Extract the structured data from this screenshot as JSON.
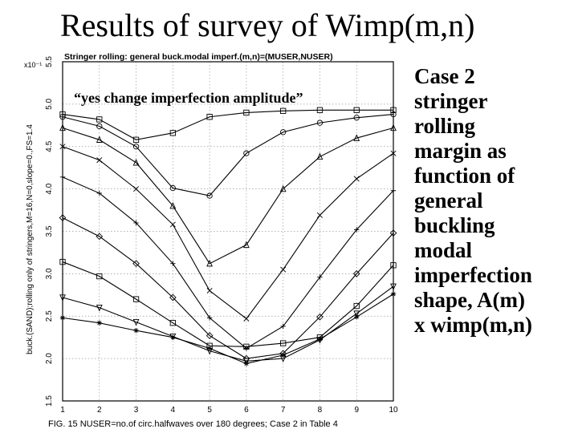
{
  "page": {
    "title": "Results of survey of Wimp(m,n)",
    "side_text": [
      "Case 2",
      "stringer",
      "rolling",
      "margin as",
      "function of",
      "general",
      "buckling",
      "modal",
      "imperfection",
      "shape, A(m)",
      "x wimp(m,n)"
    ],
    "note": "“yes change imperfection amplitude”"
  },
  "chart_data": {
    "type": "line",
    "title": "Stringer rolling: general buck.modal imperf.(m,n)=(MUSER,NUSER)",
    "xlabel": "FIG. 15 NUSER=no.of circ.halfwaves over 180 degrees; Case 2 in Table 4",
    "ylabel": "buck.(SAND);rolling only of stringers,M=16,N=0,slope=0.,FS=1.4",
    "y_multiplier_label": "x10⁻¹",
    "x": [
      1,
      2,
      3,
      4,
      5,
      6,
      7,
      8,
      9,
      10
    ],
    "xlim": [
      1,
      10
    ],
    "ylim": [
      1.5,
      5.5
    ],
    "x_ticks": [
      "1",
      "2",
      "3",
      "4",
      "5",
      "6",
      "7",
      "8",
      "9",
      "10"
    ],
    "y_ticks": [
      "1.5",
      "2.0",
      "2.5",
      "3.0",
      "3.5",
      "4.0",
      "4.5",
      "5.0",
      "5.5"
    ],
    "grid": true,
    "series": [
      {
        "marker": "square",
        "values": [
          4.88,
          4.82,
          4.58,
          4.66,
          4.85,
          4.9,
          4.92,
          4.93,
          4.93,
          4.93
        ]
      },
      {
        "marker": "circle",
        "values": [
          4.85,
          4.74,
          4.5,
          4.01,
          3.92,
          4.42,
          4.67,
          4.78,
          4.84,
          4.88
        ]
      },
      {
        "marker": "triangle",
        "values": [
          4.72,
          4.58,
          4.31,
          3.8,
          3.12,
          3.34,
          4.0,
          4.38,
          4.6,
          4.72
        ]
      },
      {
        "marker": "x",
        "values": [
          4.5,
          4.34,
          4.0,
          3.58,
          2.8,
          2.47,
          3.05,
          3.69,
          4.12,
          4.42
        ]
      },
      {
        "marker": "plus",
        "values": [
          4.14,
          3.95,
          3.6,
          3.12,
          2.48,
          2.12,
          2.38,
          2.96,
          3.52,
          3.98
        ]
      },
      {
        "marker": "diamond",
        "values": [
          3.66,
          3.44,
          3.12,
          2.72,
          2.27,
          2.0,
          2.06,
          2.49,
          3.0,
          3.48
        ]
      },
      {
        "marker": "square",
        "values": [
          3.14,
          2.97,
          2.7,
          2.42,
          2.15,
          2.14,
          2.18,
          2.25,
          2.62,
          3.1
        ]
      },
      {
        "marker": "triangle-down",
        "values": [
          2.72,
          2.6,
          2.43,
          2.26,
          2.09,
          1.97,
          2.0,
          2.22,
          2.53,
          2.85
        ]
      },
      {
        "marker": "star",
        "values": [
          2.48,
          2.42,
          2.33,
          2.25,
          2.12,
          1.94,
          2.04,
          2.23,
          2.49,
          2.76
        ]
      }
    ]
  }
}
